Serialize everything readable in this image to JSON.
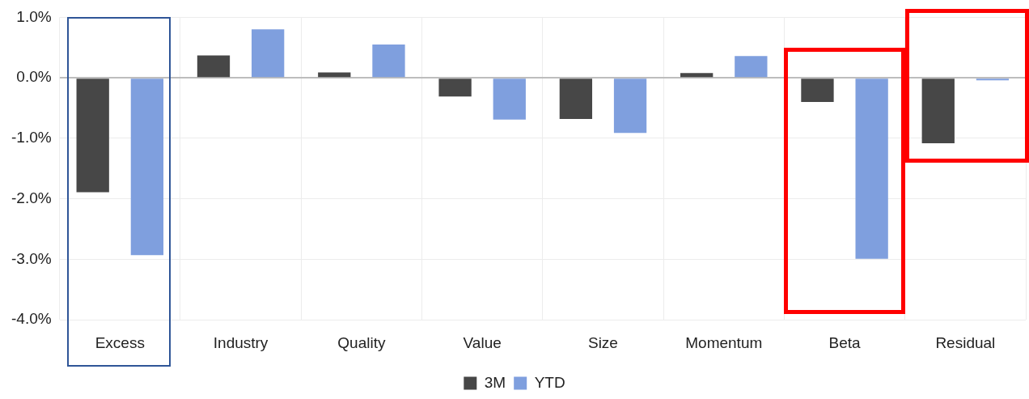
{
  "chart_data": {
    "type": "bar",
    "categories": [
      "Excess",
      "Industry",
      "Quality",
      "Value",
      "Size",
      "Momentum",
      "Beta",
      "Residual"
    ],
    "series": [
      {
        "name": "3M",
        "color": "#474747",
        "values": [
          -1.89,
          0.37,
          0.09,
          -0.31,
          -0.68,
          0.08,
          -0.4,
          -1.08
        ]
      },
      {
        "name": "YTD",
        "color": "#7f9fde",
        "values": [
          -2.93,
          0.8,
          0.55,
          -0.69,
          -0.91,
          0.36,
          -2.99,
          -0.04
        ]
      }
    ],
    "ylim": [
      -4,
      1
    ],
    "yticks": [
      {
        "value": -4,
        "label": "-4.0%"
      },
      {
        "value": -3,
        "label": "-3.0%"
      },
      {
        "value": -2,
        "label": "-2.0%"
      },
      {
        "value": -1,
        "label": "-1.0%"
      },
      {
        "value": 0,
        "label": "0.0%"
      },
      {
        "value": 1,
        "label": "1.0%"
      }
    ],
    "grid": true,
    "legend": "bottom"
  }
}
